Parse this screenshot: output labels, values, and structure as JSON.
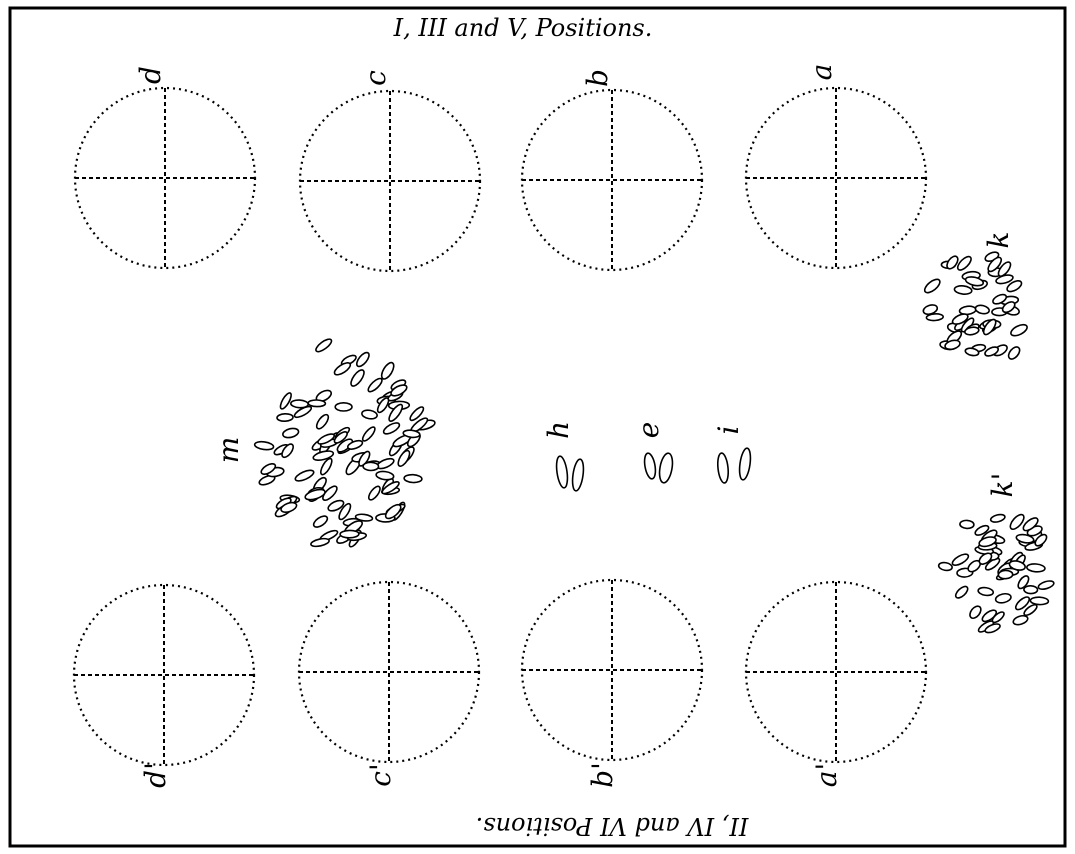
{
  "top_caption": "I, III and V, Positions.",
  "bottom_caption": "II, IV and VI Positions.",
  "top_circles": [
    {
      "label": "d"
    },
    {
      "label": "c"
    },
    {
      "label": "b"
    },
    {
      "label": "a"
    }
  ],
  "bottom_circles": [
    {
      "label": "d'"
    },
    {
      "label": "c'"
    },
    {
      "label": "b'"
    },
    {
      "label": "a'"
    }
  ],
  "clusters": {
    "m": "m",
    "k": "k",
    "k_prime": "k'",
    "h": "h",
    "e": "e",
    "i": "i"
  }
}
